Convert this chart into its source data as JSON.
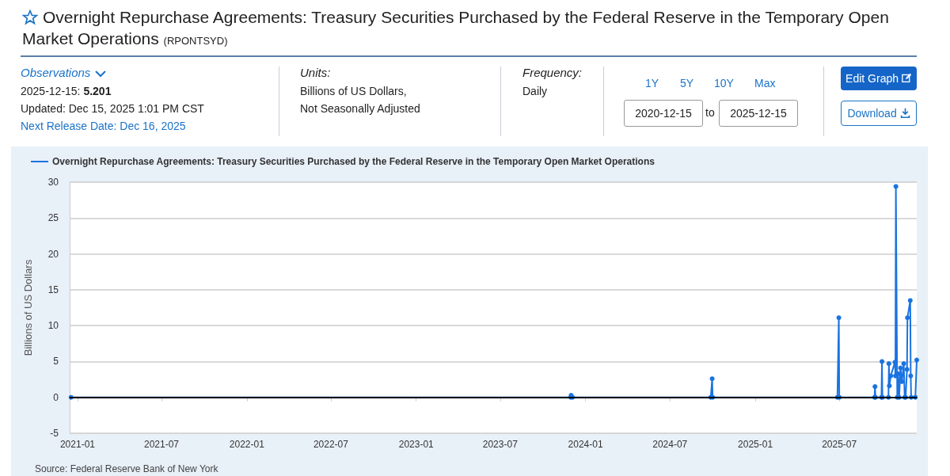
{
  "chart_data": {
    "type": "line",
    "title": "Overnight Repurchase Agreements: Treasury Securities Purchased by the Federal Reserve in the Temporary Open Market Operations",
    "ylabel": "Billions of US Dollars",
    "annotations": [
      "(RPONTSYD)",
      "Observations",
      "2025-12-15: 5.201",
      "Updated: Dec 15, 2025 1:01 PM CST",
      "Next Release Date: Dec 16, 2025",
      "Units:",
      "Billions of US Dollars,",
      "Not Seasonally Adjusted",
      "Frequency:",
      "Daily",
      "1Y",
      "5Y",
      "10Y",
      "Max",
      "2020-12-15",
      "to",
      "2025-12-15",
      "Edit Graph",
      "Download",
      "Source: Federal Reserve Bank of New York"
    ],
    "series": [
      {
        "name": "Overnight Repurchase Agreements: Treasury Securities Purchased by the Federal Reserve in the Temporary Open Market Operations",
        "color": "#1a73e0",
        "x": [
          "2020-12-18",
          "2023-11-30",
          "2023-12-01",
          "2023-12-04",
          "2024-09-27",
          "2024-09-30",
          "2024-10-01",
          "2025-06-27",
          "2025-06-30",
          "2025-07-01",
          "2025-09-15",
          "2025-09-16",
          "2025-09-17",
          "2025-09-30",
          "2025-10-01",
          "2025-10-02",
          "2025-10-15",
          "2025-10-16",
          "2025-10-17",
          "2025-10-20",
          "2025-10-29",
          "2025-10-30",
          "2025-10-31",
          "2025-11-03",
          "2025-11-05",
          "2025-11-07",
          "2025-11-10",
          "2025-11-13",
          "2025-11-17",
          "2025-11-19",
          "2025-11-21",
          "2025-11-24",
          "2025-11-25",
          "2025-12-01",
          "2025-12-02",
          "2025-12-03",
          "2025-12-12",
          "2025-12-15"
        ],
        "values": [
          0,
          0,
          0.3,
          0,
          0,
          2.6,
          0,
          0,
          11.1,
          0,
          0,
          1.5,
          0,
          0,
          5.0,
          0,
          0,
          4.7,
          1.6,
          3.0,
          4.9,
          3.0,
          29.4,
          0,
          3.3,
          0,
          4.1,
          2.2,
          4.7,
          0,
          0,
          3.9,
          11.1,
          13.5,
          3.0,
          0,
          0,
          5.2
        ]
      }
    ],
    "xlim": [
      "2020-12-15",
      "2025-12-15"
    ],
    "xticks": [
      "2021-01",
      "2021-07",
      "2022-01",
      "2022-07",
      "2023-01",
      "2023-07",
      "2024-01",
      "2024-07",
      "2025-01",
      "2025-07"
    ],
    "ylim": [
      -5,
      30
    ],
    "yticks": [
      -5,
      0,
      5,
      10,
      15,
      20,
      25,
      30
    ],
    "ref_lines": [
      {
        "axis": "y",
        "value": 0,
        "color": "#000000"
      }
    ],
    "grid": "y",
    "legend": "top left",
    "marker": "circle",
    "line_style": "solid"
  }
}
